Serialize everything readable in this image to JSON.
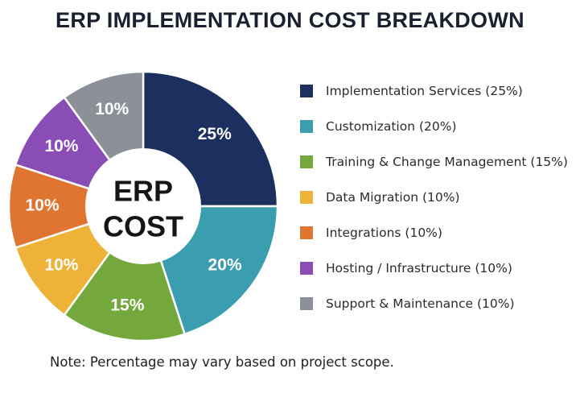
{
  "title": "ERP IMPLEMENTATION COST BREAKDOWN",
  "note": "Note: Percentage may vary based on project scope.",
  "center_label": {
    "line1": "ERP",
    "line2": "COST"
  },
  "chart_data": {
    "type": "pie",
    "title": "ERP IMPLEMENTATION COST BREAKDOWN",
    "categories": [
      "Implementation Services",
      "Customization",
      "Training & Change Management",
      "Data Migration",
      "Integrations",
      "Hosting / Infrastructure",
      "Support & Maintenance"
    ],
    "values": [
      25,
      20,
      15,
      10,
      10,
      10,
      10
    ],
    "data_labels": [
      "25%",
      "20%",
      "15%",
      "10%",
      "10%",
      "10%",
      "10%"
    ],
    "colors": [
      "#1c2f5e",
      "#3a9eb0",
      "#74a83c",
      "#eeb238",
      "#e07431",
      "#8a4cb5",
      "#8c9199"
    ],
    "legend_entries": [
      "Implementation Services (25%)",
      "Customization (20%)",
      "Training & Change Management (15%)",
      "Data Migration (10%)",
      "Integrations (10%)",
      "Hosting / Infrastructure (10%)",
      "Support & Maintenance (10%)"
    ],
    "legend_position": "right",
    "donut": true
  }
}
